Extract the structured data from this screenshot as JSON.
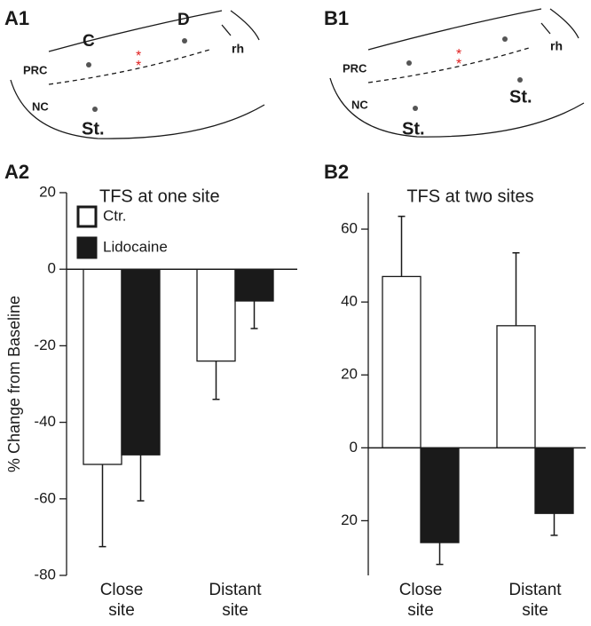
{
  "diagrams": [
    {
      "label": "A1",
      "site_labels": [
        "C",
        "D"
      ],
      "region_labels": [
        "PRC",
        "NC",
        "rh"
      ],
      "electrode_labels": [
        "St."
      ],
      "asterisks": [
        "*",
        "*"
      ]
    },
    {
      "label": "B1",
      "region_labels": [
        "PRC",
        "NC",
        "rh"
      ],
      "electrode_labels": [
        "St.",
        "St."
      ],
      "asterisks": [
        "*",
        "*"
      ]
    }
  ],
  "chart_data": [
    {
      "type": "bar",
      "panel": "A2",
      "title": "TFS at one site",
      "y_label": "% Change from Baseline",
      "categories": [
        "Close site",
        "Distant site"
      ],
      "series": [
        {
          "name": "Ctr.",
          "color": "#ffffff",
          "values": [
            -51,
            -24
          ],
          "errors": [
            21.5,
            10
          ]
        },
        {
          "name": "Lidocaine",
          "color": "#1a1a1a",
          "values": [
            -48.5,
            -8.3
          ],
          "errors": [
            12,
            7.2
          ]
        }
      ],
      "ylim": [
        -80,
        20
      ],
      "yticks": [
        -80,
        -60,
        -40,
        -20,
        0,
        20
      ],
      "legend": "top-left"
    },
    {
      "type": "bar",
      "panel": "B2",
      "title": "TFS at two sites",
      "categories": [
        "Close site",
        "Distant site"
      ],
      "series": [
        {
          "color": "#ffffff",
          "values": [
            47,
            33.5
          ],
          "errors": [
            16.5,
            20
          ]
        },
        {
          "color": "#1a1a1a",
          "values": [
            -26,
            -18
          ],
          "errors": [
            6,
            6
          ]
        }
      ],
      "ylim": [
        -35,
        70
      ],
      "yticks": [
        {
          "value": -20,
          "label": "20"
        },
        0,
        20,
        40,
        60
      ]
    }
  ]
}
